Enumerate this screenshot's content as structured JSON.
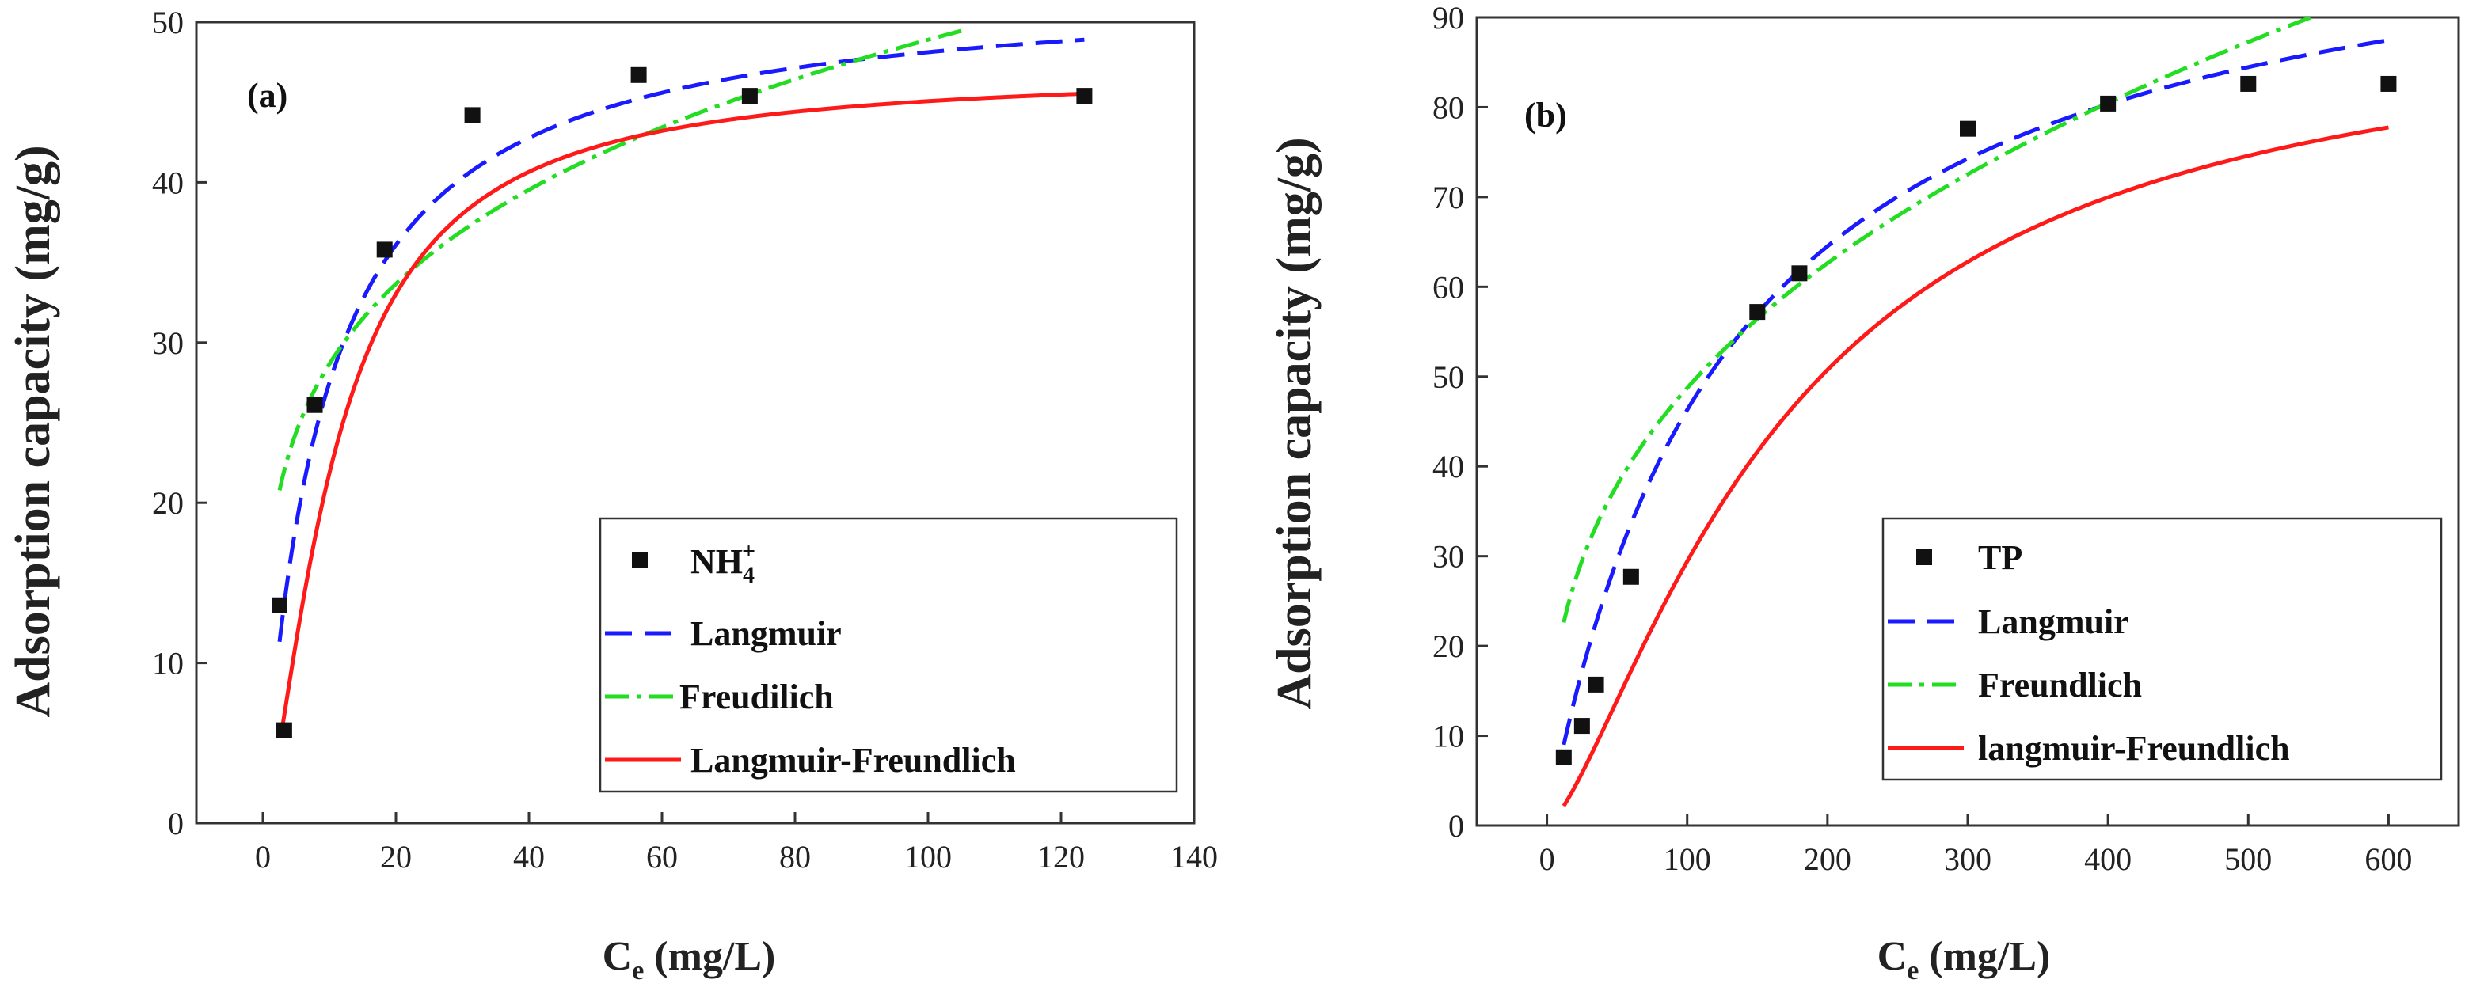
{
  "chart_data": [
    {
      "type": "scatter",
      "panel_label": "(a)",
      "xlabel": {
        "main": "C",
        "sub": "e",
        "unit": " (mg/L)"
      },
      "ylabel": "Adsorption capacity (mg/g)",
      "xlim": [
        -10,
        140
      ],
      "ylim": [
        0,
        50
      ],
      "xticks": [
        0,
        20,
        40,
        60,
        80,
        100,
        120,
        140
      ],
      "yticks": [
        0,
        10,
        20,
        30,
        40,
        50
      ],
      "points": {
        "name": "NH",
        "name_sub": "4",
        "name_sup": "+",
        "x": [
          2.5,
          3.2,
          7.8,
          18.3,
          31.5,
          56.5,
          73.2,
          123.5
        ],
        "y": [
          13.6,
          5.8,
          26.1,
          35.8,
          44.2,
          46.7,
          45.4,
          45.4
        ]
      },
      "series": [
        {
          "name": "Langmuir",
          "model": "langmuir",
          "color": "#1a1aff",
          "dash": "34,16",
          "params": {
            "qm": 52.5,
            "k": 0.11
          },
          "x_range": [
            2.5,
            123.5
          ]
        },
        {
          "name": "Freudilich",
          "model": "freundlich",
          "color": "#22dd22",
          "dash": "30,10,6,10",
          "params": {
            "kf": 16.8,
            "n": 0.232
          },
          "x_range": [
            2.5,
            106
          ]
        },
        {
          "name": "Langmuir-Freundlich",
          "model": "sips",
          "color": "#ff1a1a",
          "dash": "",
          "params": {
            "qm": 46.9,
            "k": 0.091,
            "n": 1.45
          },
          "x_range": [
            3,
            123.5
          ]
        }
      ],
      "legend_position": "bottom-right"
    },
    {
      "type": "scatter",
      "panel_label": "(b)",
      "xlabel": {
        "main": "C",
        "sub": "e",
        "unit": " (mg/L)"
      },
      "ylabel": "Adsorption capacity (mg/g)",
      "xlim": [
        -50,
        650
      ],
      "ylim": [
        0,
        90
      ],
      "xticks": [
        0,
        100,
        200,
        300,
        400,
        500,
        600
      ],
      "yticks": [
        0,
        10,
        20,
        30,
        40,
        50,
        60,
        70,
        80,
        90
      ],
      "points": {
        "name": "TP",
        "x": [
          12,
          25,
          35,
          60,
          150,
          180,
          300,
          400,
          500,
          600
        ],
        "y": [
          7.6,
          11.1,
          15.7,
          27.7,
          57.2,
          61.5,
          77.6,
          80.4,
          82.6,
          82.6
        ]
      },
      "series": [
        {
          "name": "Langmuir",
          "model": "langmuir",
          "color": "#1a1aff",
          "dash": "34,16",
          "params": {
            "qm": 106.4,
            "k": 0.0077
          },
          "x_range": [
            12,
            600
          ]
        },
        {
          "name": "Freundlich",
          "model": "freundlich",
          "color": "#22dd22",
          "dash": "30,10,6,10",
          "params": {
            "kf": 9.2,
            "n": 0.362
          },
          "x_range": [
            12,
            560
          ]
        },
        {
          "name": "langmuir-Freundlich",
          "model": "sips",
          "color": "#ff1a1a",
          "dash": "",
          "params": {
            "qm": 91.0,
            "k": 0.0059,
            "n": 1.4
          },
          "x_range": [
            12,
            600
          ]
        }
      ],
      "legend_position": "bottom-right"
    }
  ]
}
